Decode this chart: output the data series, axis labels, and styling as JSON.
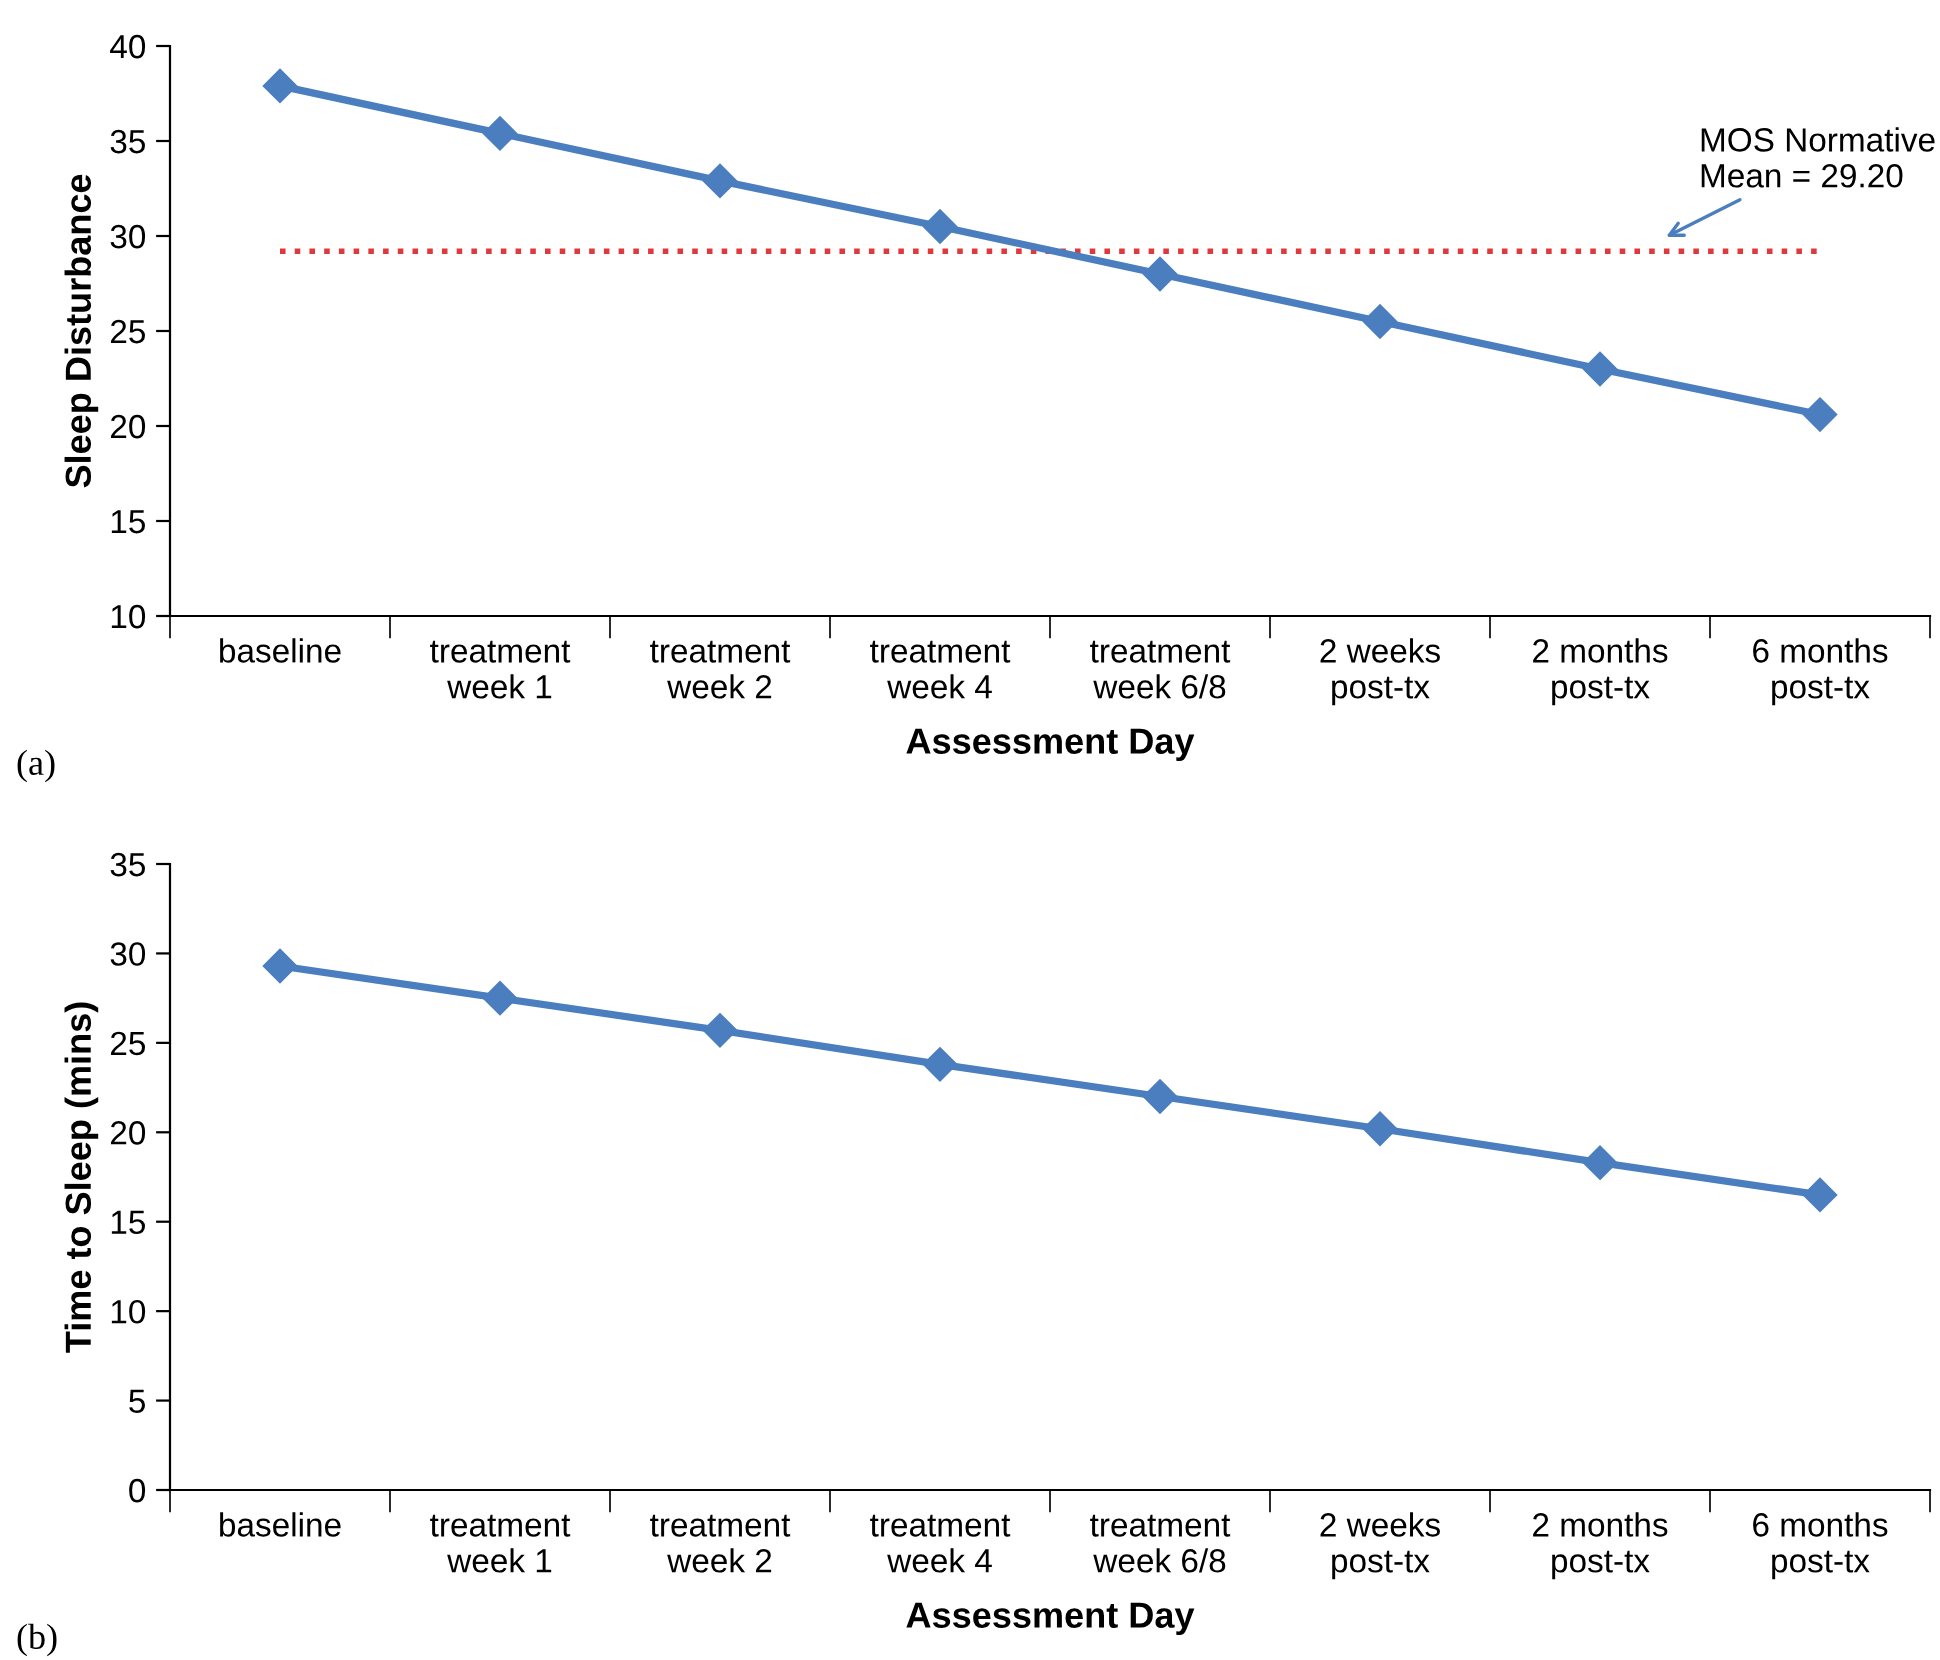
{
  "chart_data": [
    {
      "type": "line",
      "xlabel": "Assessment Day",
      "ylabel": "Sleep Disturbance",
      "categories": [
        "baseline",
        "treatment\nweek 1",
        "treatment\nweek 2",
        "treatment\nweek 4",
        "treatment\nweek 6/8",
        "2 weeks\npost-tx",
        "2 months\npost-tx",
        "6 months\npost-tx"
      ],
      "series": [
        {
          "color": "#4a7ebf",
          "values": [
            37.9,
            35.4,
            32.9,
            30.5,
            28.0,
            25.5,
            23.0,
            20.6
          ]
        }
      ],
      "ylim": [
        10,
        40
      ],
      "yticks": [
        10,
        15,
        20,
        25,
        30,
        35,
        40
      ],
      "ref_lines": [
        {
          "axis": "y",
          "value": 29.2,
          "label": "MOS Normative\nMean = 29.20",
          "color": "#e0393b",
          "line_style": "dotted"
        }
      ],
      "annotations": [
        "(a)"
      ],
      "marker": "diamond",
      "line_style": "solid",
      "grid": false,
      "legend": false
    },
    {
      "type": "line",
      "xlabel": "Assessment Day",
      "ylabel": "Time to Sleep (mins)",
      "categories": [
        "baseline",
        "treatment\nweek 1",
        "treatment\nweek 2",
        "treatment\nweek 4",
        "treatment\nweek 6/8",
        "2 weeks\npost-tx",
        "2 months\npost-tx",
        "6 months\npost-tx"
      ],
      "series": [
        {
          "color": "#4a7ebf",
          "values": [
            29.3,
            27.5,
            25.7,
            23.8,
            22.0,
            20.2,
            18.3,
            16.5
          ]
        }
      ],
      "ylim": [
        0,
        35
      ],
      "yticks": [
        0,
        5,
        10,
        15,
        20,
        25,
        30,
        35
      ],
      "annotations": [
        "(b)"
      ],
      "marker": "diamond",
      "line_style": "solid",
      "grid": false,
      "legend": false
    }
  ]
}
